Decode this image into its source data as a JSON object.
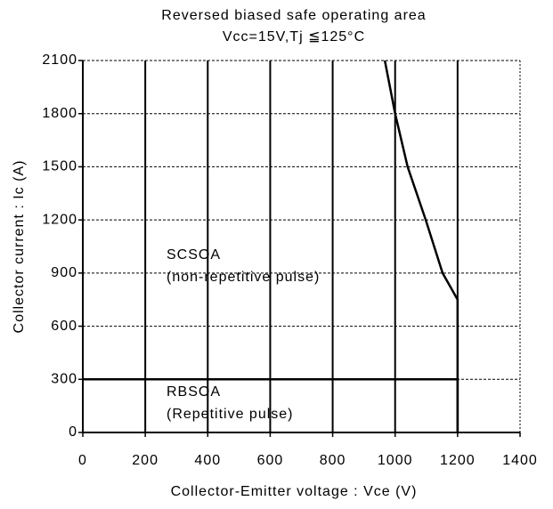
{
  "chart_data": {
    "type": "line",
    "title": "Reversed biased safe operating area",
    "subtitle": "Vcc=15V,Tj ≦125°C",
    "x_label": "Collector-Emitter voltage : Vce (V)",
    "y_label": "Collector current : Ic (A)",
    "series": [
      {
        "name": "SCSOA",
        "color": "#000000",
        "x": [
          967,
          1000,
          1040,
          1098,
          1152,
          1200,
          1200
        ],
        "values": [
          2100,
          1800,
          1500,
          1200,
          900,
          750,
          0
        ]
      },
      {
        "name": "RBSOA",
        "color": "#000000",
        "x": [
          0,
          1200,
          1200
        ],
        "values": [
          300,
          300,
          0
        ]
      }
    ],
    "annotations": [
      "SCSOA",
      "(non-repetitive pulse)",
      "RBSOA",
      "(Repetitive pulse)"
    ],
    "xlim": [
      0,
      1400
    ],
    "xticks": [
      0,
      200,
      400,
      600,
      800,
      1000,
      1200,
      1400
    ],
    "ylim": [
      0,
      2100
    ],
    "yticks": [
      0,
      300,
      600,
      900,
      1200,
      1500,
      1800,
      2100
    ],
    "grid": true
  }
}
